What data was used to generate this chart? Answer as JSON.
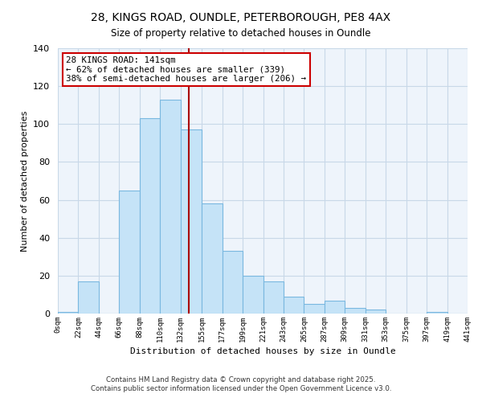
{
  "title1": "28, KINGS ROAD, OUNDLE, PETERBOROUGH, PE8 4AX",
  "title2": "Size of property relative to detached houses in Oundle",
  "xlabel": "Distribution of detached houses by size in Oundle",
  "ylabel": "Number of detached properties",
  "bin_edges": [
    0,
    22,
    44,
    66,
    88,
    110,
    132,
    155,
    177,
    199,
    221,
    243,
    265,
    287,
    309,
    331,
    353,
    375,
    397,
    419,
    441
  ],
  "bar_heights": [
    1,
    17,
    0,
    65,
    103,
    113,
    97,
    58,
    33,
    20,
    17,
    9,
    5,
    7,
    3,
    2,
    0,
    0,
    1,
    0
  ],
  "bar_color": "#c5e3f7",
  "bar_edge_color": "#7ab8e0",
  "vline_x": 141,
  "vline_color": "#aa0000",
  "annotation_title": "28 KINGS ROAD: 141sqm",
  "annotation_line1": "← 62% of detached houses are smaller (339)",
  "annotation_line2": "38% of semi-detached houses are larger (206) →",
  "annotation_box_facecolor": "#ffffff",
  "annotation_box_edgecolor": "#cc0000",
  "ylim": [
    0,
    140
  ],
  "yticks": [
    0,
    20,
    40,
    60,
    80,
    100,
    120,
    140
  ],
  "tick_labels": [
    "0sqm",
    "22sqm",
    "44sqm",
    "66sqm",
    "88sqm",
    "110sqm",
    "132sqm",
    "155sqm",
    "177sqm",
    "199sqm",
    "221sqm",
    "243sqm",
    "265sqm",
    "287sqm",
    "309sqm",
    "331sqm",
    "353sqm",
    "375sqm",
    "397sqm",
    "419sqm",
    "441sqm"
  ],
  "footer1": "Contains HM Land Registry data © Crown copyright and database right 2025.",
  "footer2": "Contains public sector information licensed under the Open Government Licence v3.0.",
  "bg_color": "#ffffff",
  "grid_color": "#c8d8e8",
  "plot_bg_color": "#eef4fb"
}
